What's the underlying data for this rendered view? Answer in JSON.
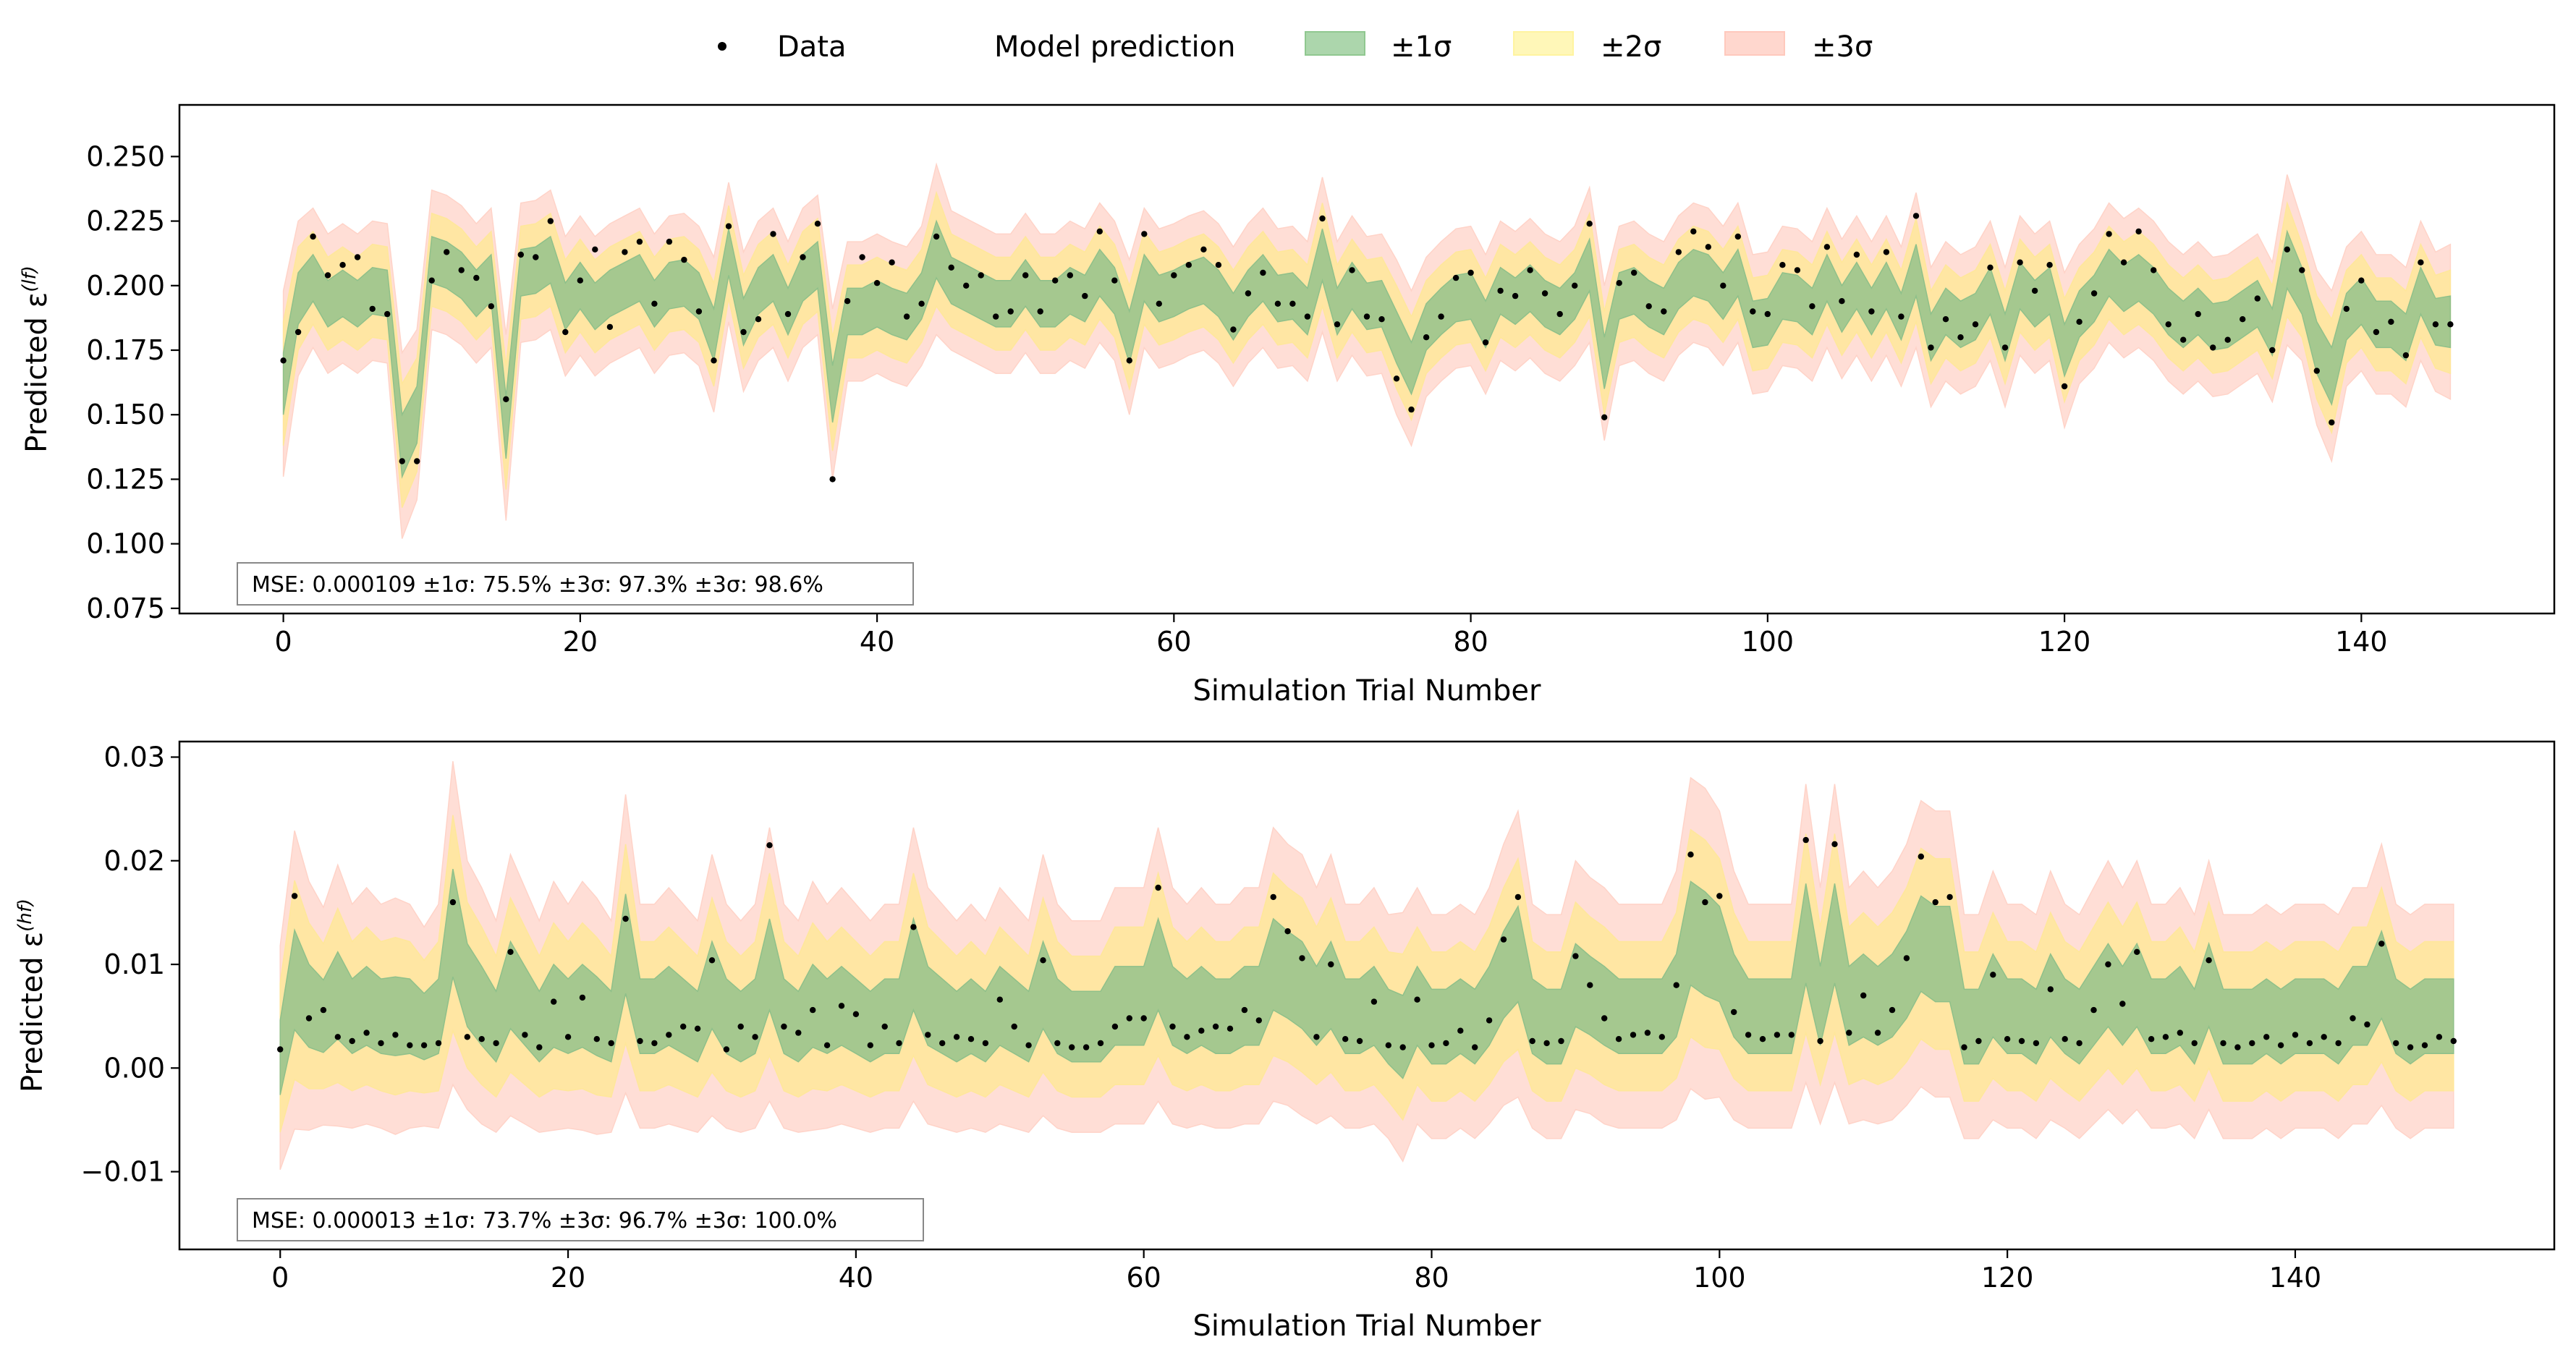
{
  "legend": {
    "position": "top-center",
    "items": [
      {
        "label": "Data",
        "kind": "marker",
        "color": "#000000"
      },
      {
        "label": "Model prediction",
        "kind": "line",
        "color": "#000000"
      },
      {
        "label": "±1σ",
        "kind": "patch",
        "color": "#90c890"
      },
      {
        "label": "±2σ",
        "kind": "patch",
        "color": "#fff4a0"
      },
      {
        "label": "±3σ",
        "kind": "patch",
        "color": "#ffc9bd"
      }
    ]
  },
  "colors": {
    "band1": "#8fc08a",
    "band2": "#ffe79a",
    "band3": "#ffd3c8",
    "data": "#000000"
  },
  "chart_data": [
    {
      "type": "line",
      "xlabel": "Simulation Trial Number",
      "ylabel": "Predicted ε",
      "ylabel_sup": "(lf)",
      "xlim": [
        -7,
        153
      ],
      "ylim": [
        0.073,
        0.27
      ],
      "xticks": [
        0,
        20,
        40,
        60,
        80,
        100,
        120,
        140
      ],
      "yticks": [
        0.075,
        0.1,
        0.125,
        0.15,
        0.175,
        0.2,
        0.225,
        0.25
      ],
      "ytick_labels": [
        "0.075",
        "0.100",
        "0.125",
        "0.150",
        "0.175",
        "0.200",
        "0.225",
        "0.250"
      ],
      "grid": false,
      "annotation": "MSE: 0.000109 ±1σ: 75.5%  ±3σ: 97.3%  ±3σ: 98.6%",
      "n": 147,
      "data_points": [
        0.171,
        0.182,
        0.219,
        0.204,
        0.208,
        0.211,
        0.191,
        0.189,
        0.132,
        0.132,
        0.202,
        0.213,
        0.206,
        0.203,
        0.192,
        0.156,
        0.212,
        0.211,
        0.225,
        0.182,
        0.202,
        0.214,
        0.184,
        0.213,
        0.217,
        0.193,
        0.217,
        0.21,
        0.19,
        0.171,
        0.223,
        0.182,
        0.187,
        0.22,
        0.189,
        0.211,
        0.224,
        0.125,
        0.194,
        0.211,
        0.201,
        0.209,
        0.188,
        0.193,
        0.219,
        0.207,
        0.2,
        0.204,
        0.188,
        0.19,
        0.204,
        0.19,
        0.202,
        0.204,
        0.196,
        0.221,
        0.202,
        0.171,
        0.22,
        0.193,
        0.204,
        0.208,
        0.214,
        0.208,
        0.183,
        0.197,
        0.205,
        0.193,
        0.193,
        0.188,
        0.226,
        0.185,
        0.206,
        0.188,
        0.187,
        0.164,
        0.152,
        0.18,
        0.188,
        0.203,
        0.205,
        0.178,
        0.198,
        0.196,
        0.206,
        0.197,
        0.189,
        0.2,
        0.224,
        0.149,
        0.201,
        0.205,
        0.192,
        0.19,
        0.213,
        0.221,
        0.215,
        0.2,
        0.219,
        0.19,
        0.189,
        0.208,
        0.206,
        0.192,
        0.215,
        0.194,
        0.212,
        0.19,
        0.213,
        0.188,
        0.227,
        0.176,
        0.187,
        0.18,
        0.185,
        0.207,
        0.176,
        0.209,
        0.198,
        0.208,
        0.161,
        0.186,
        0.197,
        0.22,
        0.209,
        0.221,
        0.206,
        0.185,
        0.179,
        0.189,
        0.176,
        0.179,
        0.187,
        0.195,
        0.175,
        0.214,
        0.206,
        0.167,
        0.147,
        0.191,
        0.202,
        0.182,
        0.186,
        0.173,
        0.209,
        0.185,
        0.185
      ],
      "prediction": [
        0.162,
        0.195,
        0.203,
        0.193,
        0.197,
        0.193,
        0.198,
        0.197,
        0.138,
        0.15,
        0.21,
        0.208,
        0.204,
        0.197,
        0.203,
        0.145,
        0.205,
        0.206,
        0.21,
        0.192,
        0.2,
        0.192,
        0.197,
        0.2,
        0.203,
        0.193,
        0.2,
        0.201,
        0.196,
        0.181,
        0.213,
        0.186,
        0.198,
        0.203,
        0.19,
        0.203,
        0.208,
        0.158,
        0.19,
        0.19,
        0.193,
        0.19,
        0.188,
        0.196,
        0.214,
        0.202,
        0.199,
        0.196,
        0.193,
        0.193,
        0.201,
        0.193,
        0.193,
        0.198,
        0.195,
        0.205,
        0.198,
        0.18,
        0.203,
        0.195,
        0.197,
        0.2,
        0.202,
        0.197,
        0.188,
        0.197,
        0.203,
        0.195,
        0.196,
        0.19,
        0.212,
        0.19,
        0.2,
        0.192,
        0.193,
        0.18,
        0.168,
        0.184,
        0.19,
        0.195,
        0.196,
        0.185,
        0.198,
        0.194,
        0.199,
        0.193,
        0.19,
        0.196,
        0.208,
        0.17,
        0.196,
        0.198,
        0.193,
        0.19,
        0.2,
        0.205,
        0.203,
        0.196,
        0.205,
        0.185,
        0.186,
        0.196,
        0.195,
        0.19,
        0.203,
        0.191,
        0.2,
        0.19,
        0.2,
        0.188,
        0.206,
        0.18,
        0.19,
        0.185,
        0.188,
        0.198,
        0.18,
        0.2,
        0.193,
        0.198,
        0.175,
        0.189,
        0.195,
        0.205,
        0.199,
        0.203,
        0.198,
        0.19,
        0.185,
        0.19,
        0.184,
        0.185,
        0.189,
        0.193,
        0.182,
        0.21,
        0.198,
        0.176,
        0.165,
        0.188,
        0.194,
        0.185,
        0.185,
        0.18,
        0.198,
        0.186,
        0.186
      ],
      "sigma": [
        0.012,
        0.01,
        0.009,
        0.009,
        0.009,
        0.009,
        0.009,
        0.009,
        0.012,
        0.011,
        0.009,
        0.009,
        0.009,
        0.009,
        0.009,
        0.012,
        0.009,
        0.009,
        0.009,
        0.009,
        0.009,
        0.009,
        0.009,
        0.009,
        0.009,
        0.009,
        0.009,
        0.009,
        0.009,
        0.01,
        0.009,
        0.009,
        0.009,
        0.009,
        0.009,
        0.009,
        0.009,
        0.011,
        0.009,
        0.009,
        0.009,
        0.009,
        0.009,
        0.009,
        0.011,
        0.009,
        0.009,
        0.009,
        0.009,
        0.009,
        0.009,
        0.009,
        0.009,
        0.009,
        0.009,
        0.009,
        0.009,
        0.01,
        0.009,
        0.009,
        0.009,
        0.009,
        0.009,
        0.009,
        0.009,
        0.009,
        0.009,
        0.009,
        0.009,
        0.009,
        0.01,
        0.009,
        0.009,
        0.009,
        0.009,
        0.01,
        0.01,
        0.009,
        0.009,
        0.009,
        0.009,
        0.009,
        0.009,
        0.009,
        0.009,
        0.009,
        0.009,
        0.009,
        0.01,
        0.01,
        0.009,
        0.009,
        0.009,
        0.009,
        0.009,
        0.009,
        0.009,
        0.009,
        0.009,
        0.009,
        0.009,
        0.009,
        0.009,
        0.009,
        0.009,
        0.009,
        0.009,
        0.009,
        0.009,
        0.009,
        0.01,
        0.009,
        0.009,
        0.009,
        0.009,
        0.009,
        0.009,
        0.009,
        0.009,
        0.009,
        0.01,
        0.009,
        0.009,
        0.009,
        0.009,
        0.009,
        0.009,
        0.009,
        0.009,
        0.009,
        0.009,
        0.009,
        0.009,
        0.009,
        0.009,
        0.011,
        0.009,
        0.01,
        0.011,
        0.009,
        0.009,
        0.009,
        0.009,
        0.009,
        0.009,
        0.009,
        0.01
      ]
    },
    {
      "type": "line",
      "xlabel": "Simulation Trial Number",
      "ylabel": "Predicted ε",
      "ylabel_sup": "(hf)",
      "xlim": [
        -7,
        158
      ],
      "ylim": [
        -0.0175,
        0.0315
      ],
      "xticks": [
        0,
        20,
        40,
        60,
        80,
        100,
        120,
        140
      ],
      "yticks": [
        -0.01,
        0.0,
        0.01,
        0.02,
        0.03
      ],
      "ytick_labels": [
        "−0.01",
        "0.00",
        "0.01",
        "0.02",
        "0.03"
      ],
      "grid": false,
      "annotation": "MSE: 0.000013 ±1σ: 73.7%  ±3σ: 96.7%  ±3σ: 100.0%",
      "n": 152,
      "data_points": [
        0.0018,
        0.0166,
        0.0048,
        0.0056,
        0.003,
        0.0026,
        0.0034,
        0.0024,
        0.0032,
        0.0022,
        0.0022,
        0.0024,
        0.016,
        0.003,
        0.0028,
        0.0024,
        0.0112,
        0.0032,
        0.002,
        0.0064,
        0.003,
        0.0068,
        0.0028,
        0.0024,
        0.0144,
        0.0026,
        0.0024,
        0.0032,
        0.004,
        0.0038,
        0.0104,
        0.0018,
        0.004,
        0.003,
        0.0215,
        0.004,
        0.0034,
        0.0056,
        0.0022,
        0.006,
        0.0052,
        0.0022,
        0.004,
        0.0024,
        0.0136,
        0.0032,
        0.0024,
        0.003,
        0.0028,
        0.0024,
        0.0066,
        0.004,
        0.0022,
        0.0104,
        0.0024,
        0.002,
        0.002,
        0.0024,
        0.004,
        0.0048,
        0.0048,
        0.0174,
        0.004,
        0.003,
        0.0036,
        0.004,
        0.0038,
        0.0056,
        0.0046,
        0.0165,
        0.0132,
        0.0106,
        0.003,
        0.01,
        0.0028,
        0.0026,
        0.0064,
        0.0022,
        0.002,
        0.0066,
        0.0022,
        0.0024,
        0.0036,
        0.002,
        0.0046,
        0.0124,
        0.0165,
        0.0026,
        0.0024,
        0.0026,
        0.0108,
        0.008,
        0.0048,
        0.0028,
        0.0032,
        0.0034,
        0.003,
        0.008,
        0.0206,
        0.016,
        0.0166,
        0.0054,
        0.0032,
        0.0028,
        0.0032,
        0.0032,
        0.022,
        0.0026,
        0.0216,
        0.0034,
        0.007,
        0.0034,
        0.0056,
        0.0106,
        0.0204,
        0.016,
        0.0165,
        0.002,
        0.0026,
        0.009,
        0.0028,
        0.0026,
        0.0024,
        0.0076,
        0.0028,
        0.0024,
        0.0056,
        0.01,
        0.0062,
        0.0112,
        0.0028,
        0.003,
        0.0034,
        0.0024,
        0.0104,
        0.0024,
        0.002,
        0.0024,
        0.003,
        0.0022,
        0.0032,
        0.0024,
        0.003,
        0.0024,
        0.0048,
        0.0042,
        0.012,
        0.0024,
        0.002,
        0.0022,
        0.003,
        0.0026
      ],
      "prediction": [
        0.001,
        0.0085,
        0.006,
        0.005,
        0.007,
        0.005,
        0.006,
        0.005,
        0.005,
        0.005,
        0.004,
        0.005,
        0.014,
        0.008,
        0.006,
        0.004,
        0.008,
        0.006,
        0.004,
        0.006,
        0.005,
        0.006,
        0.005,
        0.004,
        0.012,
        0.005,
        0.005,
        0.006,
        0.005,
        0.004,
        0.008,
        0.005,
        0.004,
        0.005,
        0.01,
        0.005,
        0.004,
        0.006,
        0.005,
        0.006,
        0.005,
        0.004,
        0.005,
        0.005,
        0.01,
        0.006,
        0.005,
        0.004,
        0.005,
        0.004,
        0.006,
        0.005,
        0.004,
        0.008,
        0.005,
        0.004,
        0.004,
        0.004,
        0.006,
        0.006,
        0.006,
        0.01,
        0.006,
        0.005,
        0.006,
        0.005,
        0.005,
        0.006,
        0.006,
        0.01,
        0.009,
        0.008,
        0.006,
        0.008,
        0.005,
        0.005,
        0.006,
        0.004,
        0.003,
        0.006,
        0.004,
        0.004,
        0.005,
        0.004,
        0.006,
        0.009,
        0.011,
        0.005,
        0.004,
        0.004,
        0.008,
        0.007,
        0.006,
        0.005,
        0.005,
        0.005,
        0.005,
        0.007,
        0.013,
        0.012,
        0.011,
        0.007,
        0.005,
        0.005,
        0.005,
        0.005,
        0.013,
        0.006,
        0.013,
        0.006,
        0.007,
        0.006,
        0.007,
        0.009,
        0.012,
        0.011,
        0.011,
        0.004,
        0.004,
        0.007,
        0.005,
        0.005,
        0.004,
        0.007,
        0.005,
        0.004,
        0.006,
        0.008,
        0.006,
        0.008,
        0.005,
        0.005,
        0.006,
        0.004,
        0.008,
        0.004,
        0.004,
        0.004,
        0.005,
        0.004,
        0.005,
        0.005,
        0.005,
        0.004,
        0.006,
        0.006,
        0.009,
        0.005,
        0.004,
        0.005,
        0.005,
        0.005
      ],
      "sigma": [
        0.0036,
        0.0048,
        0.004,
        0.0035,
        0.0042,
        0.0036,
        0.0038,
        0.0036,
        0.0038,
        0.0036,
        0.0032,
        0.0036,
        0.0052,
        0.004,
        0.0038,
        0.0034,
        0.0042,
        0.0038,
        0.0034,
        0.004,
        0.0036,
        0.004,
        0.0038,
        0.0034,
        0.0048,
        0.0036,
        0.0036,
        0.0038,
        0.0036,
        0.0034,
        0.0042,
        0.0036,
        0.0034,
        0.0036,
        0.0044,
        0.0036,
        0.0034,
        0.004,
        0.0036,
        0.0038,
        0.0036,
        0.0034,
        0.0036,
        0.0036,
        0.0044,
        0.0038,
        0.0036,
        0.0034,
        0.0036,
        0.0034,
        0.0038,
        0.0036,
        0.0034,
        0.0042,
        0.0036,
        0.0034,
        0.0034,
        0.0034,
        0.0038,
        0.0038,
        0.0038,
        0.0044,
        0.0038,
        0.0036,
        0.0038,
        0.0036,
        0.0036,
        0.0038,
        0.0038,
        0.0044,
        0.0042,
        0.0042,
        0.0038,
        0.0042,
        0.0036,
        0.0036,
        0.0038,
        0.0036,
        0.004,
        0.0038,
        0.0036,
        0.0036,
        0.0036,
        0.0036,
        0.0038,
        0.0042,
        0.0046,
        0.0036,
        0.0036,
        0.0036,
        0.004,
        0.0038,
        0.0038,
        0.0036,
        0.0036,
        0.0036,
        0.0036,
        0.004,
        0.005,
        0.005,
        0.0046,
        0.004,
        0.0036,
        0.0036,
        0.0036,
        0.0036,
        0.0048,
        0.0038,
        0.0048,
        0.0038,
        0.004,
        0.0038,
        0.004,
        0.0042,
        0.0046,
        0.0046,
        0.0046,
        0.0036,
        0.0036,
        0.004,
        0.0036,
        0.0036,
        0.0036,
        0.004,
        0.0036,
        0.0036,
        0.0038,
        0.004,
        0.0038,
        0.004,
        0.0036,
        0.0036,
        0.0038,
        0.0036,
        0.004,
        0.0036,
        0.0036,
        0.0036,
        0.0036,
        0.0036,
        0.0036,
        0.0036,
        0.0036,
        0.0036,
        0.0038,
        0.0038,
        0.0042,
        0.0036,
        0.0036,
        0.0036,
        0.0036,
        0.0036
      ]
    }
  ]
}
